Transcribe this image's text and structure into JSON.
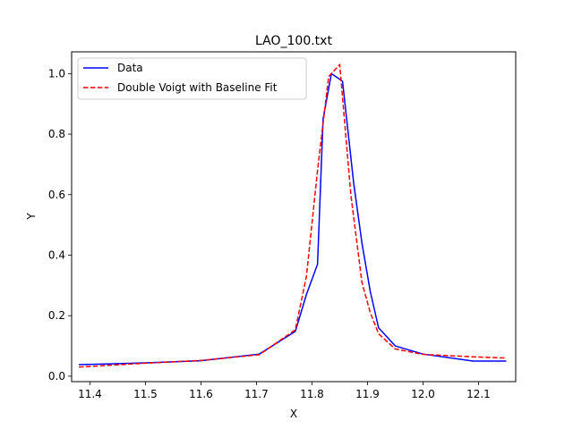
{
  "chart_data": {
    "type": "line",
    "title": "LAO_100.txt",
    "xlabel": "X",
    "ylabel": "Y",
    "xlim": [
      11.367,
      12.167
    ],
    "ylim": [
      -0.018,
      1.072
    ],
    "xticks": [
      11.4,
      11.5,
      11.6,
      11.7,
      11.8,
      11.9,
      12.0,
      12.1
    ],
    "xtick_labels": [
      "11.4",
      "11.5",
      "11.6",
      "11.7",
      "11.8",
      "11.9",
      "12.0",
      "12.1"
    ],
    "yticks": [
      0.0,
      0.2,
      0.4,
      0.6,
      0.8,
      1.0
    ],
    "ytick_labels": [
      "0.0",
      "0.2",
      "0.4",
      "0.6",
      "0.8",
      "1.0"
    ],
    "grid": false,
    "legend_position": "top-left",
    "series": [
      {
        "name": "Data",
        "color": "#0000ff",
        "style": "solid",
        "x": [
          11.38,
          11.5,
          11.6,
          11.705,
          11.77,
          11.79,
          11.81,
          11.82,
          11.835,
          11.855,
          11.875,
          11.89,
          11.905,
          11.92,
          11.95,
          12.0,
          12.09,
          12.15
        ],
        "y": [
          0.038,
          0.044,
          0.051,
          0.073,
          0.148,
          0.27,
          0.37,
          0.85,
          1.0,
          0.975,
          0.64,
          0.44,
          0.28,
          0.16,
          0.1,
          0.073,
          0.05,
          0.05
        ]
      },
      {
        "name": "Double Voigt with Baseline Fit",
        "color": "#ff0000",
        "style": "dashed",
        "x": [
          11.38,
          11.5,
          11.6,
          11.705,
          11.77,
          11.79,
          11.81,
          11.83,
          11.85,
          11.87,
          11.89,
          11.905,
          11.92,
          11.95,
          12.0,
          12.09,
          12.15
        ],
        "y": [
          0.03,
          0.043,
          0.052,
          0.071,
          0.153,
          0.33,
          0.68,
          0.99,
          1.03,
          0.6,
          0.31,
          0.21,
          0.14,
          0.09,
          0.072,
          0.064,
          0.06
        ]
      }
    ]
  }
}
